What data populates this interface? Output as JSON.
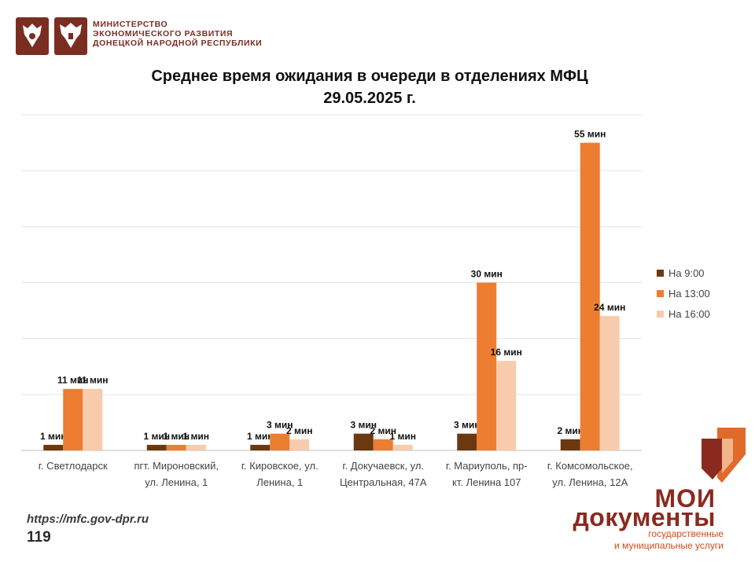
{
  "header": {
    "ministry_lines": [
      "МИНИСТЕРСТВО",
      "ЭКОНОМИЧЕСКОГО РАЗВИТИЯ",
      "ДОНЕЦКОЙ НАРОДНОЙ РЕСПУБЛИКИ"
    ],
    "emblem_color": "#7a2e22"
  },
  "footer": {
    "url": "https://mfc.gov-dpr.ru",
    "page_number": "119"
  },
  "logo": {
    "word1": "МОИ",
    "word2": "документы",
    "sub1": "государственные",
    "sub2": "и муниципальные услуги",
    "colors": {
      "dark": "#8a2a1f",
      "orange": "#e06a2a",
      "light": "#f2b48a"
    }
  },
  "chart_data": {
    "type": "bar",
    "title_lines": [
      "Среднее время ожидания в очереди в отделениях МФЦ",
      "29.05.2025 г."
    ],
    "categories": [
      [
        "г. Светлодарск"
      ],
      [
        "пгт. Мироновский,",
        "ул. Ленина, 1"
      ],
      [
        "г. Кировское, ул.",
        "Ленина, 1"
      ],
      [
        "г. Докучаевск, ул.",
        "Центральная, 47А"
      ],
      [
        "г. Мариуполь, пр-",
        "кт. Ленина 107"
      ],
      [
        "г. Комсомольское,",
        "ул. Ленина, 12А"
      ]
    ],
    "series": [
      {
        "name": "На 9:00",
        "color": "#6b3810",
        "values": [
          1,
          1,
          1,
          3,
          3,
          2
        ]
      },
      {
        "name": "На 13:00",
        "color": "#ed7d31",
        "values": [
          11,
          1,
          3,
          2,
          30,
          55
        ]
      },
      {
        "name": "На 16:00",
        "color": "#f8cbad",
        "values": [
          11,
          1,
          2,
          1,
          16,
          24
        ]
      }
    ],
    "value_suffix": " мин",
    "ylim": [
      0,
      60
    ],
    "grid": true,
    "legend": "right"
  }
}
